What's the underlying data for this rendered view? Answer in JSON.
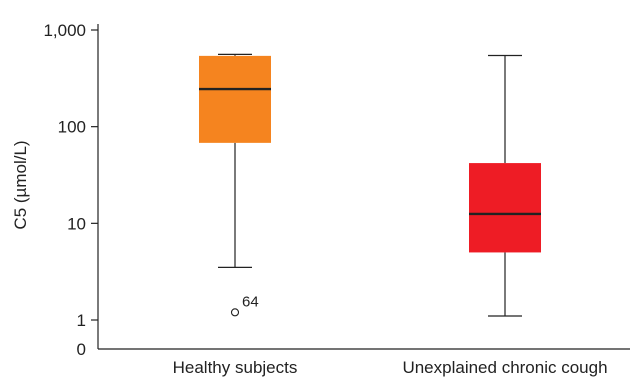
{
  "chart_data": {
    "type": "box",
    "ylabel": "C5 (µmol/L)",
    "yscale": "log",
    "ylim": [
      0.7,
      1000
    ],
    "yticks": [
      {
        "value": 1000,
        "label": "1,000"
      },
      {
        "value": 100,
        "label": "100"
      },
      {
        "value": 10,
        "label": "10"
      },
      {
        "value": 1,
        "label": "1"
      }
    ],
    "y_zero_label": "0",
    "categories": [
      "Healthy subjects",
      "Unexplained chronic cough"
    ],
    "boxes": [
      {
        "name": "Healthy subjects",
        "whisker_low": 3.5,
        "q1": 68,
        "median": 245,
        "q3": 540,
        "whisker_high": 560,
        "color": "#f5841f",
        "outliers": [
          {
            "value": 1.2,
            "label": "64"
          }
        ]
      },
      {
        "name": "Unexplained chronic cough",
        "whisker_low": 1.1,
        "q1": 5,
        "median": 12.5,
        "q3": 42,
        "whisker_high": 545,
        "color": "#ee1c25",
        "outliers": []
      }
    ]
  }
}
